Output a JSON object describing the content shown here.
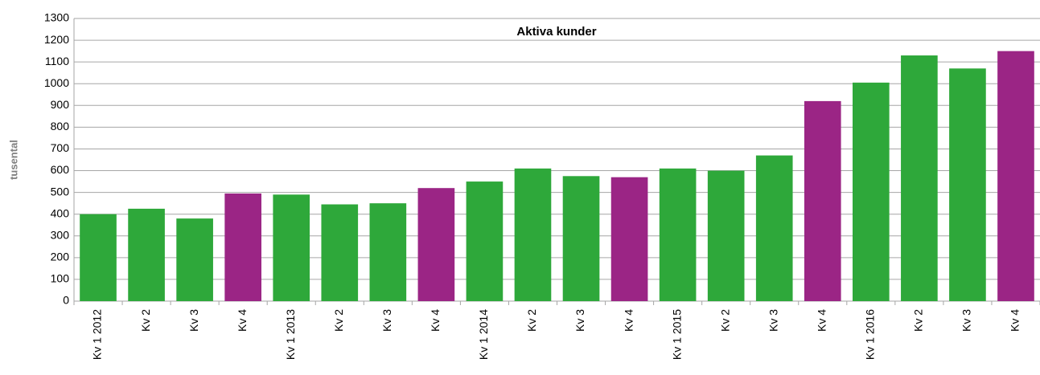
{
  "chart_data": {
    "type": "bar",
    "title": "Aktiva kunder",
    "y_label": "tusental",
    "categories": [
      "Kv 1 2012",
      "Kv 2",
      "Kv 3",
      "Kv 4",
      "Kv 1 2013",
      "Kv 2",
      "Kv 3",
      "Kv 4",
      "Kv 1 2014",
      "Kv 2",
      "Kv 3",
      "Kv 4",
      "Kv 1 2015",
      "Kv 2",
      "Kv 3",
      "Kv 4",
      "Kv 1 2016",
      "Kv 2",
      "Kv 3",
      "Kv 4"
    ],
    "values": [
      400,
      425,
      380,
      495,
      490,
      445,
      450,
      520,
      550,
      610,
      575,
      570,
      610,
      600,
      670,
      920,
      1005,
      1130,
      1070,
      1150
    ],
    "colors": [
      "#2ea83a",
      "#2ea83a",
      "#2ea83a",
      "#9b2585",
      "#2ea83a",
      "#2ea83a",
      "#2ea83a",
      "#9b2585",
      "#2ea83a",
      "#2ea83a",
      "#2ea83a",
      "#9b2585",
      "#2ea83a",
      "#2ea83a",
      "#2ea83a",
      "#9b2585",
      "#2ea83a",
      "#2ea83a",
      "#2ea83a",
      "#9b2585"
    ],
    "ylim": [
      0,
      1300
    ],
    "yticks": [
      0,
      100,
      200,
      300,
      400,
      500,
      600,
      700,
      800,
      900,
      1000,
      1100,
      1200,
      1300
    ],
    "grid": true
  }
}
